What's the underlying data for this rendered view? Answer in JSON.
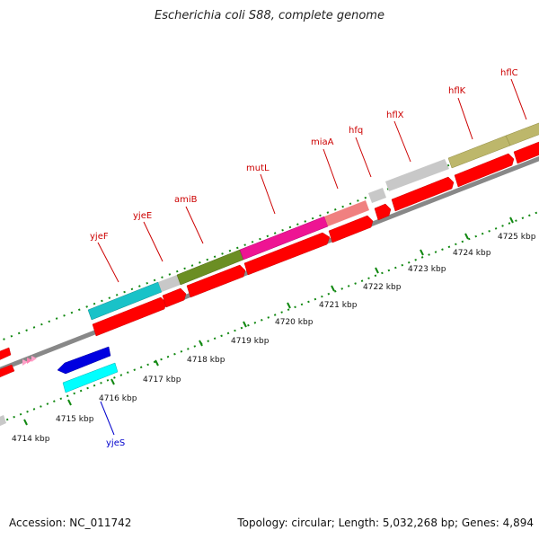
{
  "title": "Escherichia coli S88, complete genome",
  "footer": {
    "accession": "Accession: NC_011742",
    "stats": "Topology: circular; Length: 5,032,268 bp; Genes: 4,894"
  },
  "colors": {
    "forward_arrow": "#ff0000",
    "gene_label_forward": "#cc0000",
    "gene_label_reverse": "#0000cc",
    "tick": "#118811",
    "backbone": "#888888"
  },
  "scale": {
    "ticks": [
      {
        "label": "4714 kbp"
      },
      {
        "label": "4715 kbp"
      },
      {
        "label": "4716 kbp"
      },
      {
        "label": "4717 kbp"
      },
      {
        "label": "4718 kbp"
      },
      {
        "label": "4719 kbp"
      },
      {
        "label": "4720 kbp"
      },
      {
        "label": "4721 kbp"
      },
      {
        "label": "4722 kbp"
      },
      {
        "label": "4723 kbp"
      },
      {
        "label": "4724 kbp"
      },
      {
        "label": "4725 kbp"
      }
    ]
  },
  "genes": {
    "forward": [
      {
        "label": "yjeF",
        "color": "#19c2c8"
      },
      {
        "label": "yjeE",
        "color": "#c8c8c8"
      },
      {
        "label": "amiB",
        "color": "#6b8e23"
      },
      {
        "label": "mutL",
        "color": "#ee1493"
      },
      {
        "label": "miaA",
        "color": "#f08080"
      },
      {
        "label": "hfq",
        "color": "#c8c8c8"
      },
      {
        "label": "hflX",
        "color": "#c8c8c8"
      },
      {
        "label": "hflK",
        "color": "#bdb76b"
      },
      {
        "label": "hflC",
        "color": "#bdb76b"
      }
    ],
    "reverse": [
      {
        "label": "yjeS",
        "color": "#00ffff"
      }
    ]
  }
}
